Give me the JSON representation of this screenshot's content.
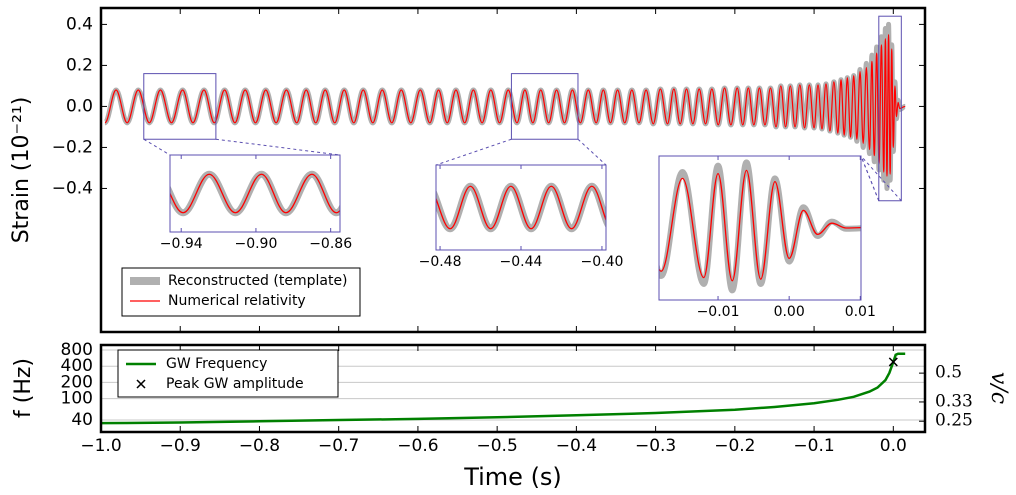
{
  "chart_data": [
    {
      "type": "line",
      "y_label": "Strain (10⁻²¹)",
      "ylim": [
        -1.1,
        0.48
      ],
      "yticks": [
        0.4,
        0.2,
        {
          "value": 0,
          "label": "0.0"
        },
        {
          "value": -0.2,
          "label": "−0.2"
        },
        {
          "value": -0.4,
          "label": "−0.4"
        }
      ],
      "legend": "lower left",
      "x": [
        -0.995,
        -0.981,
        -0.967,
        -0.953,
        -0.939,
        -0.925,
        -0.911,
        -0.897,
        -0.884,
        -0.87,
        -0.857,
        -0.844,
        -0.831,
        -0.818,
        -0.805,
        -0.792,
        -0.779,
        -0.766,
        -0.753,
        -0.741,
        -0.729,
        -0.717,
        -0.705,
        -0.693,
        -0.681,
        -0.669,
        -0.657,
        -0.645,
        -0.633,
        -0.621,
        -0.609,
        -0.597,
        -0.585,
        -0.574,
        -0.563,
        -0.552,
        -0.541,
        -0.53,
        -0.519,
        -0.508,
        -0.497,
        -0.486,
        -0.475,
        -0.465,
        -0.455,
        -0.445,
        -0.435,
        -0.425,
        -0.415,
        -0.405,
        -0.395,
        -0.385,
        -0.375,
        -0.366,
        -0.357,
        -0.348,
        -0.339,
        -0.33,
        -0.321,
        -0.312,
        -0.303,
        -0.294,
        -0.285,
        -0.277,
        -0.269,
        -0.261,
        -0.253,
        -0.245,
        -0.237,
        -0.229,
        -0.221,
        -0.213,
        -0.205,
        -0.197,
        -0.19,
        -0.183,
        -0.176,
        -0.169,
        -0.162,
        -0.155,
        -0.148,
        -0.142,
        -0.136,
        -0.13,
        -0.124,
        -0.118,
        -0.112,
        -0.106,
        -0.1,
        -0.095,
        -0.09,
        -0.085,
        -0.08,
        -0.075,
        -0.07,
        -0.066,
        -0.062,
        -0.058,
        -0.054,
        -0.05,
        -0.046,
        -0.042,
        -0.038,
        -0.034,
        -0.03,
        -0.027,
        -0.024,
        -0.021,
        -0.018,
        -0.015,
        -0.012,
        -0.01,
        -0.008,
        -0.006,
        -0.004,
        -0.002,
        0.0,
        0.002,
        0.004,
        0.006,
        0.008,
        0.015
      ],
      "series": [
        {
          "name": "Reconstructed (template)",
          "color": "#b0b0b0",
          "values": [
            -0.08,
            0.08,
            -0.08,
            0.08,
            -0.08,
            0.08,
            -0.08,
            0.08,
            -0.08,
            0.08,
            -0.08,
            0.08,
            -0.08,
            0.08,
            -0.08,
            0.08,
            -0.08,
            0.08,
            -0.08,
            0.08,
            -0.08,
            0.08,
            -0.08,
            0.08,
            -0.08,
            0.08,
            -0.08,
            0.08,
            -0.08,
            0.08,
            -0.08,
            0.08,
            -0.08,
            0.08,
            -0.08,
            0.08,
            -0.08,
            0.08,
            -0.08,
            0.08,
            -0.08,
            0.08,
            -0.08,
            0.08,
            -0.08,
            0.08,
            -0.08,
            0.08,
            -0.08,
            0.08,
            -0.08,
            0.08,
            -0.08,
            0.08,
            -0.08,
            0.08,
            -0.08,
            0.08,
            -0.08,
            0.08,
            -0.085,
            0.085,
            -0.085,
            0.085,
            -0.085,
            0.085,
            -0.085,
            0.085,
            -0.085,
            0.085,
            -0.09,
            0.09,
            -0.09,
            0.09,
            -0.09,
            0.09,
            -0.09,
            0.09,
            -0.09,
            0.09,
            -0.1,
            0.1,
            -0.1,
            0.1,
            -0.1,
            0.105,
            -0.105,
            0.105,
            -0.105,
            0.105,
            -0.11,
            0.11,
            -0.12,
            0.12,
            -0.13,
            0.13,
            -0.14,
            0.14,
            -0.15,
            0.15,
            -0.17,
            0.18,
            -0.2,
            0.21,
            -0.23,
            0.25,
            -0.27,
            0.29,
            -0.31,
            0.34,
            -0.36,
            0.38,
            -0.4,
            0.4,
            -0.36,
            0.3,
            -0.22,
            0.12,
            -0.06,
            0.03,
            -0.015,
            0
          ]
        },
        {
          "name": "Numerical relativity",
          "color": "#ff0000",
          "values": [
            -0.08,
            0.08,
            -0.08,
            0.08,
            -0.08,
            0.08,
            -0.08,
            0.08,
            -0.08,
            0.08,
            -0.08,
            0.08,
            -0.08,
            0.08,
            -0.08,
            0.08,
            -0.08,
            0.08,
            -0.08,
            0.08,
            -0.08,
            0.08,
            -0.08,
            0.08,
            -0.08,
            0.08,
            -0.08,
            0.08,
            -0.08,
            0.08,
            -0.08,
            0.08,
            -0.08,
            0.08,
            -0.08,
            0.08,
            -0.08,
            0.08,
            -0.08,
            0.08,
            -0.08,
            0.08,
            -0.08,
            0.08,
            -0.08,
            0.08,
            -0.08,
            0.08,
            -0.08,
            0.08,
            -0.08,
            0.08,
            -0.08,
            0.08,
            -0.08,
            0.08,
            -0.08,
            0.08,
            -0.08,
            0.08,
            -0.085,
            0.085,
            -0.085,
            0.085,
            -0.085,
            0.085,
            -0.085,
            0.085,
            -0.085,
            0.085,
            -0.09,
            0.09,
            -0.09,
            0.09,
            -0.09,
            0.09,
            -0.09,
            0.09,
            -0.09,
            0.09,
            -0.1,
            0.1,
            -0.1,
            0.1,
            -0.1,
            0.105,
            -0.105,
            0.105,
            -0.105,
            0.105,
            -0.11,
            0.11,
            -0.12,
            0.12,
            -0.13,
            0.13,
            -0.14,
            0.14,
            -0.15,
            0.15,
            -0.16,
            0.17,
            -0.18,
            0.19,
            -0.21,
            0.22,
            -0.24,
            0.26,
            -0.28,
            0.3,
            -0.32,
            0.33,
            -0.34,
            0.35,
            -0.33,
            0.28,
            -0.2,
            0.1,
            -0.05,
            0.02,
            -0.01,
            0
          ]
        }
      ],
      "insets": [
        {
          "xlim": [
            -0.946,
            -0.855
          ],
          "ylim": [
            -0.16,
            0.16
          ],
          "xticks": [
            {
              "value": -0.94,
              "label": "−0.94"
            },
            {
              "value": -0.9,
              "label": "−0.90"
            },
            {
              "value": -0.86,
              "label": "−0.86"
            }
          ]
        },
        {
          "xlim": [
            -0.482,
            -0.398
          ],
          "ylim": [
            -0.16,
            0.16
          ],
          "xticks": [
            {
              "value": -0.48,
              "label": "−0.48"
            },
            {
              "value": -0.44,
              "label": "−0.44"
            },
            {
              "value": -0.4,
              "label": "−0.40"
            }
          ]
        },
        {
          "xlim": [
            -0.0183,
            0.0101
          ],
          "ylim": [
            -0.46,
            0.44
          ],
          "xticks": [
            {
              "value": -0.01,
              "label": "−0.01"
            },
            {
              "value": 0,
              "label": "0.00"
            },
            {
              "value": 0.01,
              "label": "0.01"
            }
          ]
        }
      ]
    },
    {
      "type": "line",
      "x_label": "Time (s)",
      "y_label": "f (Hz)",
      "y2_label": "v/c",
      "xlim": [
        -1.0,
        0.04
      ],
      "xticks": [
        {
          "value": -1,
          "label": "−1.0"
        },
        {
          "value": -0.9,
          "label": "−0.9"
        },
        {
          "value": -0.8,
          "label": "−0.8"
        },
        {
          "value": -0.7,
          "label": "−0.7"
        },
        {
          "value": -0.6,
          "label": "−0.6"
        },
        {
          "value": -0.5,
          "label": "−0.5"
        },
        {
          "value": -0.4,
          "label": "−0.4"
        },
        {
          "value": -0.3,
          "label": "−0.3"
        },
        {
          "value": -0.2,
          "label": "−0.2"
        },
        {
          "value": -0.1,
          "label": "−0.1"
        },
        {
          "value": 0,
          "label": "0.0"
        }
      ],
      "ylim": [
        24,
        990
      ],
      "yticks": [
        40,
        100,
        200,
        400,
        800
      ],
      "log_y": true,
      "y2lim": [
        0.214,
        0.75
      ],
      "y2ticks": [
        0.25,
        0.33,
        0.5
      ],
      "log_y2": true,
      "grid": true,
      "legend": "upper left",
      "series": [
        {
          "name": "GW Frequency",
          "color": "#008000",
          "x": [
            -1,
            -0.9,
            -0.8,
            -0.7,
            -0.6,
            -0.5,
            -0.4,
            -0.3,
            -0.2,
            -0.15,
            -0.1,
            -0.07,
            -0.05,
            -0.03,
            -0.02,
            -0.01,
            -0.005,
            0,
            0.003,
            0.006,
            0.015
          ],
          "values": [
            35,
            36,
            38,
            40,
            42,
            45,
            49,
            54,
            62,
            70,
            82,
            95,
            108,
            135,
            160,
            220,
            300,
            480,
            650,
            680,
            680
          ]
        },
        {
          "name": "Peak GW amplitude",
          "color": "#000000",
          "marker": "x",
          "x": [
            0
          ],
          "values": [
            480
          ]
        }
      ]
    }
  ]
}
